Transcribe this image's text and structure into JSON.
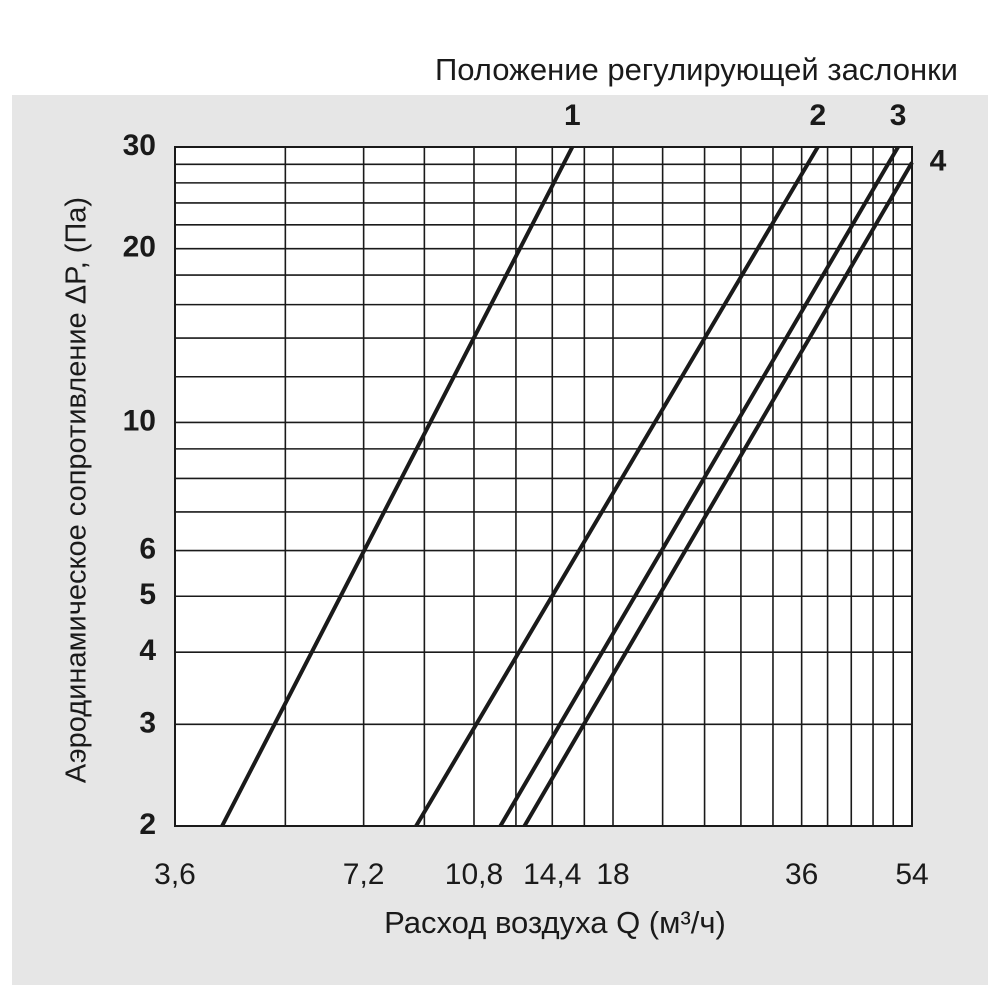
{
  "chart_data": {
    "type": "line",
    "title": "Положение регулирующей заслонки",
    "xlabel": "Расход воздуха Q (м³/ч)",
    "ylabel": "Аэродинамическое сопротивление ΔP, (Па)",
    "log_x": true,
    "log_y": true,
    "grid": true,
    "xlim": [
      3.6,
      54
    ],
    "ylim": [
      2,
      30
    ],
    "xticks": [
      {
        "value": 3.6,
        "label": "3,6"
      },
      {
        "value": 7.2,
        "label": "7,2"
      },
      {
        "value": 10.8,
        "label": "10,8"
      },
      {
        "value": 14.4,
        "label": "14,4"
      },
      18,
      36,
      54
    ],
    "yticks": [
      2,
      3,
      4,
      5,
      6,
      10,
      20,
      30
    ],
    "x_minor_grid": [
      5.4,
      9,
      12.6,
      16.2,
      21.6,
      25.2,
      28.8,
      32.4,
      39.6,
      43.2,
      46.8,
      50.4
    ],
    "y_minor_grid": [
      7,
      8,
      9,
      12,
      14,
      16,
      18,
      22,
      24,
      26,
      28
    ],
    "series": [
      {
        "name": "1",
        "color": "#1a1a1a",
        "x": [
          4.28,
          15.5
        ],
        "values": [
          2,
          30
        ]
      },
      {
        "name": "2",
        "color": "#1a1a1a",
        "x": [
          8.73,
          38.2
        ],
        "values": [
          2,
          30
        ]
      },
      {
        "name": "3",
        "color": "#1a1a1a",
        "x": [
          11.9,
          51.3
        ],
        "values": [
          2,
          30
        ]
      },
      {
        "name": "4",
        "color": "#1a1a1a",
        "x": [
          13.0,
          54
        ],
        "values": [
          2,
          28.2
        ]
      }
    ]
  }
}
